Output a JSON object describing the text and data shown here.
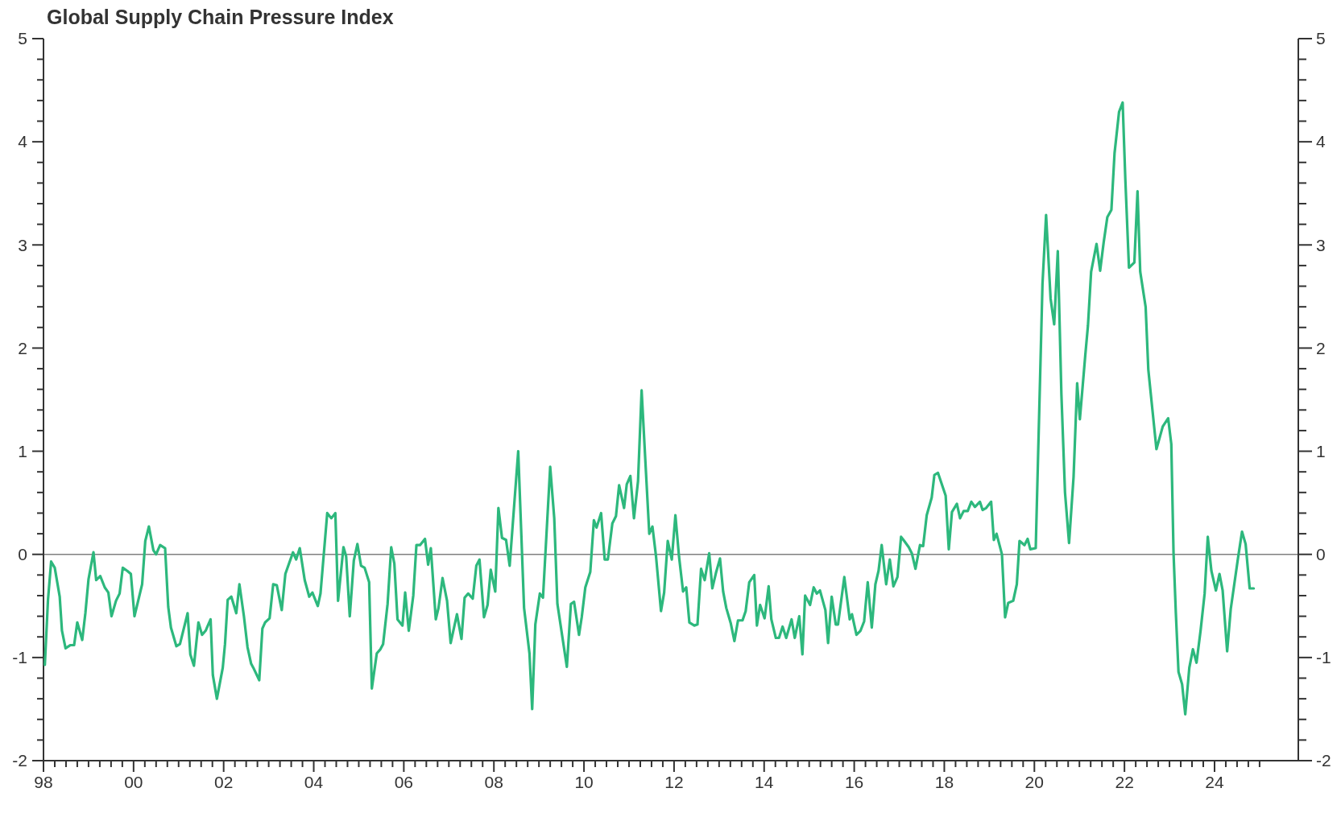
{
  "chart_data": {
    "type": "line",
    "title": "Global Supply Chain Pressure Index",
    "x": [
      1998.03,
      1998.1,
      1998.17,
      1998.25,
      1998.36,
      1998.41,
      1998.49,
      1998.6,
      1998.68,
      1998.75,
      1998.86,
      1998.93,
      1999.0,
      1999.11,
      1999.17,
      1999.26,
      1999.36,
      1999.44,
      1999.51,
      1999.61,
      1999.69,
      1999.76,
      1999.86,
      1999.94,
      2000.02,
      2000.19,
      2000.26,
      2000.34,
      2000.44,
      2000.5,
      2000.59,
      2000.7,
      2000.77,
      2000.83,
      2000.95,
      2001.03,
      2001.2,
      2001.26,
      2001.34,
      2001.44,
      2001.52,
      2001.6,
      2001.71,
      2001.76,
      2001.85,
      2001.98,
      2002.03,
      2002.09,
      2002.17,
      2002.28,
      2002.35,
      2002.45,
      2002.53,
      2002.61,
      2002.66,
      2002.79,
      2002.86,
      2002.92,
      2003.02,
      2003.1,
      2003.18,
      2003.29,
      2003.37,
      2003.54,
      2003.61,
      2003.69,
      2003.8,
      2003.9,
      2003.97,
      2004.09,
      2004.15,
      2004.3,
      2004.39,
      2004.48,
      2004.54,
      2004.66,
      2004.72,
      2004.8,
      2004.89,
      2004.97,
      2005.05,
      2005.13,
      2005.23,
      2005.29,
      2005.4,
      2005.48,
      2005.54,
      2005.64,
      2005.72,
      2005.79,
      2005.86,
      2005.97,
      2006.03,
      2006.11,
      2006.21,
      2006.28,
      2006.36,
      2006.47,
      2006.54,
      2006.6,
      2006.71,
      2006.77,
      2006.86,
      2006.96,
      2007.04,
      2007.18,
      2007.28,
      2007.35,
      2007.43,
      2007.53,
      2007.61,
      2007.68,
      2007.78,
      2007.86,
      2007.93,
      2008.03,
      2008.1,
      2008.18,
      2008.27,
      2008.35,
      2008.54,
      2008.67,
      2008.79,
      2008.85,
      2008.92,
      2009.02,
      2009.09,
      2009.25,
      2009.34,
      2009.41,
      2009.62,
      2009.71,
      2009.78,
      2009.89,
      2009.95,
      2010.03,
      2010.14,
      2010.22,
      2010.28,
      2010.38,
      2010.46,
      2010.53,
      2010.63,
      2010.71,
      2010.78,
      2010.89,
      2010.95,
      2011.03,
      2011.11,
      2011.2,
      2011.28,
      2011.36,
      2011.45,
      2011.52,
      2011.6,
      2011.71,
      2011.78,
      2011.86,
      2011.95,
      2012.03,
      2012.11,
      2012.2,
      2012.27,
      2012.34,
      2012.45,
      2012.52,
      2012.6,
      2012.68,
      2012.78,
      2012.85,
      2012.93,
      2013.02,
      2013.09,
      2013.16,
      2013.26,
      2013.34,
      2013.42,
      2013.52,
      2013.59,
      2013.67,
      2013.78,
      2013.84,
      2013.91,
      2014.01,
      2014.1,
      2014.16,
      2014.26,
      2014.33,
      2014.41,
      2014.49,
      2014.61,
      2014.68,
      2014.78,
      2014.85,
      2014.91,
      2015.02,
      2015.1,
      2015.17,
      2015.24,
      2015.36,
      2015.42,
      2015.5,
      2015.59,
      2015.64,
      2015.78,
      2015.9,
      2015.95,
      2016.05,
      2016.14,
      2016.22,
      2016.3,
      2016.39,
      2016.47,
      2016.54,
      2016.61,
      2016.71,
      2016.79,
      2016.87,
      2016.96,
      2017.04,
      2017.11,
      2017.21,
      2017.28,
      2017.36,
      2017.46,
      2017.53,
      2017.61,
      2017.72,
      2017.78,
      2017.86,
      2018.03,
      2018.1,
      2018.17,
      2018.28,
      2018.35,
      2018.43,
      2018.52,
      2018.6,
      2018.68,
      2018.79,
      2018.85,
      2018.93,
      2019.04,
      2019.1,
      2019.16,
      2019.28,
      2019.35,
      2019.42,
      2019.53,
      2019.61,
      2019.67,
      2019.78,
      2019.85,
      2019.91,
      2020.03,
      2020.18,
      2020.26,
      2020.36,
      2020.44,
      2020.52,
      2020.6,
      2020.68,
      2020.77,
      2020.87,
      2020.95,
      2021.01,
      2021.13,
      2021.19,
      2021.26,
      2021.38,
      2021.46,
      2021.54,
      2021.62,
      2021.71,
      2021.78,
      2021.88,
      2021.96,
      2022.02,
      2022.1,
      2022.22,
      2022.29,
      2022.35,
      2022.47,
      2022.53,
      2022.71,
      2022.85,
      2022.97,
      2023.04,
      2023.09,
      2023.14,
      2023.2,
      2023.28,
      2023.35,
      2023.44,
      2023.52,
      2023.6,
      2023.69,
      2023.78,
      2023.85,
      2023.93,
      2024.03,
      2024.11,
      2024.18,
      2024.28,
      2024.36,
      2024.52,
      2024.61,
      2024.69,
      2024.78,
      2024.87
    ],
    "series": [
      {
        "color": "#2db87d",
        "values": [
          -1.07,
          -0.44,
          -0.07,
          -0.13,
          -0.41,
          -0.74,
          -0.91,
          -0.88,
          -0.88,
          -0.66,
          -0.83,
          -0.57,
          -0.24,
          0.02,
          -0.25,
          -0.21,
          -0.32,
          -0.37,
          -0.6,
          -0.45,
          -0.38,
          -0.13,
          -0.16,
          -0.19,
          -0.6,
          -0.29,
          0.13,
          0.27,
          0.04,
          0,
          0.09,
          0.06,
          -0.51,
          -0.71,
          -0.89,
          -0.87,
          -0.57,
          -0.97,
          -1.08,
          -0.66,
          -0.78,
          -0.74,
          -0.63,
          -1.17,
          -1.4,
          -1.1,
          -0.87,
          -0.44,
          -0.41,
          -0.57,
          -0.29,
          -0.6,
          -0.9,
          -1.06,
          -1.1,
          -1.22,
          -0.72,
          -0.66,
          -0.62,
          -0.29,
          -0.3,
          -0.54,
          -0.19,
          0.02,
          -0.05,
          0.06,
          -0.25,
          -0.41,
          -0.37,
          -0.5,
          -0.38,
          0.4,
          0.35,
          0.4,
          -0.45,
          0.07,
          -0.02,
          -0.6,
          -0.06,
          0.1,
          -0.11,
          -0.13,
          -0.27,
          -1.3,
          -0.96,
          -0.92,
          -0.87,
          -0.48,
          0.07,
          -0.09,
          -0.63,
          -0.69,
          -0.37,
          -0.74,
          -0.4,
          0.09,
          0.09,
          0.15,
          -0.1,
          0.06,
          -0.63,
          -0.52,
          -0.23,
          -0.45,
          -0.86,
          -0.58,
          -0.82,
          -0.42,
          -0.38,
          -0.43,
          -0.11,
          -0.05,
          -0.61,
          -0.49,
          -0.15,
          -0.36,
          0.45,
          0.16,
          0.14,
          -0.11,
          1.0,
          -0.52,
          -0.96,
          -1.5,
          -0.68,
          -0.38,
          -0.42,
          0.85,
          0.35,
          -0.48,
          -1.09,
          -0.48,
          -0.46,
          -0.78,
          -0.61,
          -0.32,
          -0.17,
          0.33,
          0.26,
          0.4,
          -0.05,
          -0.05,
          0.3,
          0.37,
          0.67,
          0.45,
          0.68,
          0.76,
          0.35,
          0.71,
          1.59,
          0.93,
          0.2,
          0.27,
          -0.02,
          -0.55,
          -0.37,
          0.13,
          -0.05,
          0.38,
          -0.02,
          -0.36,
          -0.32,
          -0.66,
          -0.69,
          -0.68,
          -0.14,
          -0.25,
          0.01,
          -0.33,
          -0.18,
          -0.04,
          -0.36,
          -0.52,
          -0.67,
          -0.84,
          -0.64,
          -0.64,
          -0.55,
          -0.27,
          -0.2,
          -0.69,
          -0.49,
          -0.62,
          -0.31,
          -0.63,
          -0.81,
          -0.81,
          -0.7,
          -0.81,
          -0.63,
          -0.81,
          -0.6,
          -0.97,
          -0.4,
          -0.49,
          -0.32,
          -0.38,
          -0.35,
          -0.54,
          -0.86,
          -0.41,
          -0.68,
          -0.68,
          -0.22,
          -0.63,
          -0.58,
          -0.78,
          -0.74,
          -0.65,
          -0.27,
          -0.71,
          -0.29,
          -0.16,
          0.09,
          -0.29,
          -0.05,
          -0.31,
          -0.22,
          0.17,
          0.13,
          0.07,
          0.01,
          -0.14,
          0.09,
          0.08,
          0.38,
          0.55,
          0.77,
          0.79,
          0.57,
          0.05,
          0.41,
          0.49,
          0.35,
          0.42,
          0.42,
          0.51,
          0.46,
          0.51,
          0.43,
          0.45,
          0.51,
          0.14,
          0.2,
          0.0,
          -0.61,
          -0.47,
          -0.45,
          -0.29,
          0.13,
          0.09,
          0.15,
          0.05,
          0.06,
          2.62,
          3.29,
          2.48,
          2.23,
          2.94,
          1.55,
          0.6,
          0.11,
          0.75,
          1.66,
          1.31,
          1.93,
          2.22,
          2.74,
          3.01,
          2.75,
          3.03,
          3.27,
          3.34,
          3.89,
          4.29,
          4.38,
          3.63,
          2.78,
          2.83,
          3.52,
          2.74,
          2.4,
          1.79,
          1.02,
          1.24,
          1.32,
          1.07,
          0.01,
          -0.56,
          -1.14,
          -1.26,
          -1.55,
          -1.1,
          -0.92,
          -1.05,
          -0.74,
          -0.38,
          0.17,
          -0.16,
          -0.35,
          -0.19,
          -0.35,
          -0.94,
          -0.53,
          -0.04,
          0.22,
          0.1,
          -0.33,
          -0.33
        ]
      }
    ],
    "xlim": [
      1998,
      2025.86
    ],
    "xticks": [
      {
        "value": 1998,
        "label": "98"
      },
      {
        "value": 1998.25,
        "label": null
      },
      {
        "value": 1998.5,
        "label": null
      },
      {
        "value": 1998.75,
        "label": null
      },
      {
        "value": 1999,
        "label": null
      },
      {
        "value": 1999.25,
        "label": null
      },
      {
        "value": 1999.5,
        "label": null
      },
      {
        "value": 1999.75,
        "label": null
      },
      {
        "value": 2000,
        "label": "00"
      },
      {
        "value": 2000.25,
        "label": null
      },
      {
        "value": 2000.5,
        "label": null
      },
      {
        "value": 2000.75,
        "label": null
      },
      {
        "value": 2001,
        "label": null
      },
      {
        "value": 2001.25,
        "label": null
      },
      {
        "value": 2001.5,
        "label": null
      },
      {
        "value": 2001.75,
        "label": null
      },
      {
        "value": 2002,
        "label": "02"
      },
      {
        "value": 2002.25,
        "label": null
      },
      {
        "value": 2002.5,
        "label": null
      },
      {
        "value": 2002.75,
        "label": null
      },
      {
        "value": 2003,
        "label": null
      },
      {
        "value": 2003.25,
        "label": null
      },
      {
        "value": 2003.5,
        "label": null
      },
      {
        "value": 2003.75,
        "label": null
      },
      {
        "value": 2004,
        "label": "04"
      },
      {
        "value": 2004.25,
        "label": null
      },
      {
        "value": 2004.5,
        "label": null
      },
      {
        "value": 2004.75,
        "label": null
      },
      {
        "value": 2005,
        "label": null
      },
      {
        "value": 2005.25,
        "label": null
      },
      {
        "value": 2005.5,
        "label": null
      },
      {
        "value": 2005.75,
        "label": null
      },
      {
        "value": 2006,
        "label": "06"
      },
      {
        "value": 2006.25,
        "label": null
      },
      {
        "value": 2006.5,
        "label": null
      },
      {
        "value": 2006.75,
        "label": null
      },
      {
        "value": 2007,
        "label": null
      },
      {
        "value": 2007.25,
        "label": null
      },
      {
        "value": 2007.5,
        "label": null
      },
      {
        "value": 2007.75,
        "label": null
      },
      {
        "value": 2008,
        "label": "08"
      },
      {
        "value": 2008.25,
        "label": null
      },
      {
        "value": 2008.5,
        "label": null
      },
      {
        "value": 2008.75,
        "label": null
      },
      {
        "value": 2009,
        "label": null
      },
      {
        "value": 2009.25,
        "label": null
      },
      {
        "value": 2009.5,
        "label": null
      },
      {
        "value": 2009.75,
        "label": null
      },
      {
        "value": 2010,
        "label": "10"
      },
      {
        "value": 2010.25,
        "label": null
      },
      {
        "value": 2010.5,
        "label": null
      },
      {
        "value": 2010.75,
        "label": null
      },
      {
        "value": 2011,
        "label": null
      },
      {
        "value": 2011.25,
        "label": null
      },
      {
        "value": 2011.5,
        "label": null
      },
      {
        "value": 2011.75,
        "label": null
      },
      {
        "value": 2012,
        "label": "12"
      },
      {
        "value": 2012.25,
        "label": null
      },
      {
        "value": 2012.5,
        "label": null
      },
      {
        "value": 2012.75,
        "label": null
      },
      {
        "value": 2013,
        "label": null
      },
      {
        "value": 2013.25,
        "label": null
      },
      {
        "value": 2013.5,
        "label": null
      },
      {
        "value": 2013.75,
        "label": null
      },
      {
        "value": 2014,
        "label": "14"
      },
      {
        "value": 2014.25,
        "label": null
      },
      {
        "value": 2014.5,
        "label": null
      },
      {
        "value": 2014.75,
        "label": null
      },
      {
        "value": 2015,
        "label": null
      },
      {
        "value": 2015.25,
        "label": null
      },
      {
        "value": 2015.5,
        "label": null
      },
      {
        "value": 2015.75,
        "label": null
      },
      {
        "value": 2016,
        "label": "16"
      },
      {
        "value": 2016.25,
        "label": null
      },
      {
        "value": 2016.5,
        "label": null
      },
      {
        "value": 2016.75,
        "label": null
      },
      {
        "value": 2017,
        "label": null
      },
      {
        "value": 2017.25,
        "label": null
      },
      {
        "value": 2017.5,
        "label": null
      },
      {
        "value": 2017.75,
        "label": null
      },
      {
        "value": 2018,
        "label": "18"
      },
      {
        "value": 2018.25,
        "label": null
      },
      {
        "value": 2018.5,
        "label": null
      },
      {
        "value": 2018.75,
        "label": null
      },
      {
        "value": 2019,
        "label": null
      },
      {
        "value": 2019.25,
        "label": null
      },
      {
        "value": 2019.5,
        "label": null
      },
      {
        "value": 2019.75,
        "label": null
      },
      {
        "value": 2020,
        "label": "20"
      },
      {
        "value": 2020.25,
        "label": null
      },
      {
        "value": 2020.5,
        "label": null
      },
      {
        "value": 2020.75,
        "label": null
      },
      {
        "value": 2021,
        "label": null
      },
      {
        "value": 2021.25,
        "label": null
      },
      {
        "value": 2021.5,
        "label": null
      },
      {
        "value": 2021.75,
        "label": null
      },
      {
        "value": 2022,
        "label": "22"
      },
      {
        "value": 2022.25,
        "label": null
      },
      {
        "value": 2022.5,
        "label": null
      },
      {
        "value": 2022.75,
        "label": null
      },
      {
        "value": 2023,
        "label": null
      },
      {
        "value": 2023.25,
        "label": null
      },
      {
        "value": 2023.5,
        "label": null
      },
      {
        "value": 2023.75,
        "label": null
      },
      {
        "value": 2024,
        "label": "24"
      },
      {
        "value": 2024.25,
        "label": null
      },
      {
        "value": 2024.5,
        "label": null
      },
      {
        "value": 2024.75,
        "label": null
      },
      {
        "value": 2025,
        "label": null
      }
    ],
    "ylim": [
      -2,
      5
    ],
    "yticks": [
      -2,
      {
        "value": -1.8,
        "label": null
      },
      {
        "value": -1.6,
        "label": null
      },
      {
        "value": -1.4,
        "label": null
      },
      {
        "value": -1.2,
        "label": null
      },
      -1,
      {
        "value": -0.8,
        "label": null
      },
      {
        "value": -0.6,
        "label": null
      },
      {
        "value": -0.4,
        "label": null
      },
      {
        "value": -0.2,
        "label": null
      },
      0,
      {
        "value": 0.2,
        "label": null
      },
      {
        "value": 0.4,
        "label": null
      },
      {
        "value": 0.6,
        "label": null
      },
      {
        "value": 0.8,
        "label": null
      },
      1,
      {
        "value": 1.2,
        "label": null
      },
      {
        "value": 1.4,
        "label": null
      },
      {
        "value": 1.6,
        "label": null
      },
      {
        "value": 1.8,
        "label": null
      },
      2,
      {
        "value": 2.2,
        "label": null
      },
      {
        "value": 2.4,
        "label": null
      },
      {
        "value": 2.6,
        "label": null
      },
      {
        "value": 2.8,
        "label": null
      },
      3,
      {
        "value": 3.2,
        "label": null
      },
      {
        "value": 3.4,
        "label": null
      },
      {
        "value": 3.6,
        "label": null
      },
      {
        "value": 3.8,
        "label": null
      },
      4,
      {
        "value": 4.2,
        "label": null
      },
      {
        "value": 4.4,
        "label": null
      },
      {
        "value": 4.6,
        "label": null
      },
      {
        "value": 4.8,
        "label": null
      },
      5
    ],
    "y2lim": [
      -2,
      5
    ],
    "y2ticks": [
      -2,
      {
        "value": -1.8,
        "label": null
      },
      {
        "value": -1.6,
        "label": null
      },
      {
        "value": -1.4,
        "label": null
      },
      {
        "value": -1.2,
        "label": null
      },
      -1,
      {
        "value": -0.8,
        "label": null
      },
      {
        "value": -0.6,
        "label": null
      },
      {
        "value": -0.4,
        "label": null
      },
      {
        "value": -0.2,
        "label": null
      },
      0,
      {
        "value": 0.2,
        "label": null
      },
      {
        "value": 0.4,
        "label": null
      },
      {
        "value": 0.6,
        "label": null
      },
      {
        "value": 0.8,
        "label": null
      },
      1,
      {
        "value": 1.2,
        "label": null
      },
      {
        "value": 1.4,
        "label": null
      },
      {
        "value": 1.6,
        "label": null
      },
      {
        "value": 1.8,
        "label": null
      },
      2,
      {
        "value": 2.2,
        "label": null
      },
      {
        "value": 2.4,
        "label": null
      },
      {
        "value": 2.6,
        "label": null
      },
      {
        "value": 2.8,
        "label": null
      },
      3,
      {
        "value": 3.2,
        "label": null
      },
      {
        "value": 3.4,
        "label": null
      },
      {
        "value": 3.6,
        "label": null
      },
      {
        "value": 3.8,
        "label": null
      },
      4,
      {
        "value": 4.2,
        "label": null
      },
      {
        "value": 4.4,
        "label": null
      },
      {
        "value": 4.6,
        "label": null
      },
      {
        "value": 4.8,
        "label": null
      },
      5
    ],
    "ref_lines": [
      {
        "axis": "y",
        "value": 0,
        "color": "#808080"
      }
    ],
    "grid": false,
    "marker": "none",
    "line_style": "solid"
  }
}
